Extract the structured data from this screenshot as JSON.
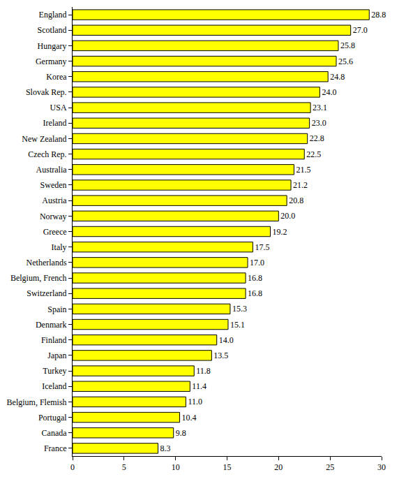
{
  "chart_data": {
    "type": "bar",
    "orientation": "horizontal",
    "categories": [
      "England",
      "Scotland",
      "Hungary",
      "Germany",
      "Korea",
      "Slovak Rep.",
      "USA",
      "Ireland",
      "New Zealand",
      "Czech Rep.",
      "Australia",
      "Sweden",
      "Austria",
      "Norway",
      "Greece",
      "Italy",
      "Netherlands",
      "Belgium, French",
      "Switzerland",
      "Spain",
      "Denmark",
      "Finland",
      "Japan",
      "Turkey",
      "Iceland",
      "Belgium, Flemish",
      "Portugal",
      "Canada",
      "France"
    ],
    "values": [
      28.8,
      27.0,
      25.8,
      25.6,
      24.8,
      24.0,
      23.1,
      23.0,
      22.8,
      22.5,
      21.5,
      21.2,
      20.8,
      20.0,
      19.2,
      17.5,
      17.0,
      16.8,
      16.8,
      15.3,
      15.1,
      14.0,
      13.5,
      11.8,
      11.4,
      11.0,
      10.4,
      9.8,
      8.3
    ],
    "value_labels": [
      "28.8",
      "27.0",
      "25.8",
      "25.6",
      "24.8",
      "24.0",
      "23.1",
      "23.0",
      "22.8",
      "22.5",
      "21.5",
      "21.2",
      "20.8",
      "20.0",
      "19.2",
      "17.5",
      "17.0",
      "16.8",
      "16.8",
      "15.3",
      "15.1",
      "14.0",
      "13.5",
      "11.8",
      "11.4",
      "11.0",
      "10.4",
      "9.8",
      "8.3"
    ],
    "color": "#ffff00",
    "data_labels": true,
    "grid": false,
    "xlim": [
      0,
      30
    ],
    "xticks": [
      0,
      5,
      10,
      15,
      20,
      25,
      30
    ]
  }
}
